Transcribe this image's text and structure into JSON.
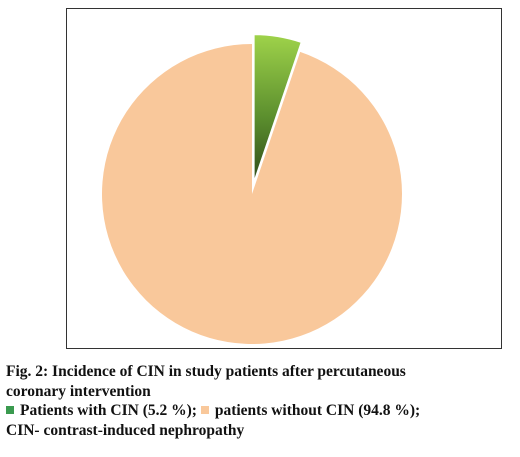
{
  "chart_data": {
    "type": "pie",
    "slices": [
      {
        "label": "Patients with CIN",
        "value": 5.2,
        "color": "#6fae2f",
        "exploded": true
      },
      {
        "label": "patients without CIN",
        "value": 94.8,
        "color": "#f9c89b",
        "exploded": false
      }
    ],
    "legend_position": "bottom"
  },
  "caption": {
    "title_line1": "Fig. 2: Incidence of CIN in study patients after percutaneous",
    "title_line2": "coronary intervention",
    "legend_with": "Patients with CIN (5.2 %);",
    "legend_without": "patients without CIN (94.8 %);",
    "abbreviation": "CIN- contrast-induced nephropathy"
  }
}
